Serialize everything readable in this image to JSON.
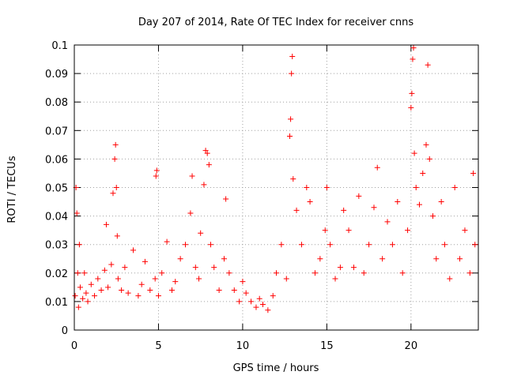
{
  "chart_data": {
    "type": "scatter",
    "title": "Day 207 of 2014, Rate Of TEC Index for receiver cnns",
    "xlabel": "GPS time / hours",
    "ylabel": "ROTI / TECUs",
    "xlim": [
      0,
      24
    ],
    "ylim": [
      0,
      0.1
    ],
    "x_ticks": [
      0,
      5,
      10,
      15,
      20
    ],
    "x_tick_labels": [
      "0",
      "5",
      "10",
      "15",
      "20"
    ],
    "y_ticks": [
      0,
      0.01,
      0.02,
      0.03,
      0.04,
      0.05,
      0.06,
      0.07,
      0.08,
      0.09,
      0.1
    ],
    "y_tick_labels": [
      "0",
      "0.01",
      "0.02",
      "0.03",
      "0.04",
      "0.05",
      "0.06",
      "0.07",
      "0.08",
      "0.09",
      "0.1"
    ],
    "grid": true,
    "marker": "+",
    "color": "#ff0000",
    "series": [
      {
        "x": [
          0.05,
          0.1,
          0.15,
          0.2,
          0.25,
          0.3,
          0.35,
          0.5,
          0.6,
          0.7,
          0.8,
          1.0,
          1.2,
          1.4,
          1.6,
          1.8,
          1.9,
          2.0,
          2.2,
          2.3,
          2.4,
          2.45,
          2.5,
          2.55,
          2.6,
          2.8,
          3.0,
          3.2,
          3.5,
          3.8,
          4.0,
          4.2,
          4.5,
          4.8,
          4.85,
          4.9,
          5.0,
          5.2,
          5.5,
          5.8,
          6.0,
          6.3,
          6.6,
          6.9,
          7.0,
          7.2,
          7.4,
          7.5,
          7.7,
          7.8,
          7.9,
          8.0,
          8.1,
          8.3,
          8.6,
          8.9,
          9.0,
          9.2,
          9.5,
          9.8,
          10.0,
          10.2,
          10.5,
          10.8,
          11.0,
          11.2,
          11.5,
          11.8,
          12.0,
          12.3,
          12.6,
          12.8,
          12.85,
          12.9,
          12.95,
          13.0,
          13.2,
          13.5,
          13.8,
          14.0,
          14.3,
          14.6,
          14.9,
          15.0,
          15.2,
          15.5,
          15.8,
          16.0,
          16.3,
          16.6,
          16.9,
          17.2,
          17.5,
          17.8,
          18.0,
          18.3,
          18.6,
          18.9,
          19.2,
          19.5,
          19.8,
          20.0,
          20.05,
          20.1,
          20.15,
          20.2,
          20.3,
          20.5,
          20.7,
          20.9,
          21.0,
          21.1,
          21.3,
          21.5,
          21.8,
          22.0,
          22.3,
          22.6,
          22.9,
          23.2,
          23.5,
          23.7,
          23.8
        ],
        "y": [
          0.012,
          0.05,
          0.041,
          0.02,
          0.008,
          0.03,
          0.015,
          0.011,
          0.02,
          0.013,
          0.01,
          0.016,
          0.012,
          0.018,
          0.014,
          0.021,
          0.037,
          0.015,
          0.023,
          0.048,
          0.06,
          0.065,
          0.05,
          0.033,
          0.018,
          0.014,
          0.022,
          0.013,
          0.028,
          0.012,
          0.016,
          0.024,
          0.014,
          0.018,
          0.054,
          0.056,
          0.012,
          0.02,
          0.031,
          0.014,
          0.017,
          0.025,
          0.03,
          0.041,
          0.054,
          0.022,
          0.018,
          0.034,
          0.051,
          0.063,
          0.062,
          0.058,
          0.03,
          0.022,
          0.014,
          0.025,
          0.046,
          0.02,
          0.014,
          0.01,
          0.017,
          0.013,
          0.01,
          0.008,
          0.011,
          0.009,
          0.007,
          0.012,
          0.02,
          0.03,
          0.018,
          0.068,
          0.074,
          0.09,
          0.096,
          0.053,
          0.042,
          0.03,
          0.05,
          0.045,
          0.02,
          0.025,
          0.035,
          0.05,
          0.03,
          0.018,
          0.022,
          0.042,
          0.035,
          0.022,
          0.047,
          0.02,
          0.03,
          0.043,
          0.057,
          0.025,
          0.038,
          0.03,
          0.045,
          0.02,
          0.035,
          0.078,
          0.083,
          0.095,
          0.099,
          0.062,
          0.05,
          0.044,
          0.055,
          0.065,
          0.093,
          0.06,
          0.04,
          0.025,
          0.045,
          0.03,
          0.018,
          0.05,
          0.025,
          0.035,
          0.02,
          0.055,
          0.03
        ]
      }
    ]
  }
}
